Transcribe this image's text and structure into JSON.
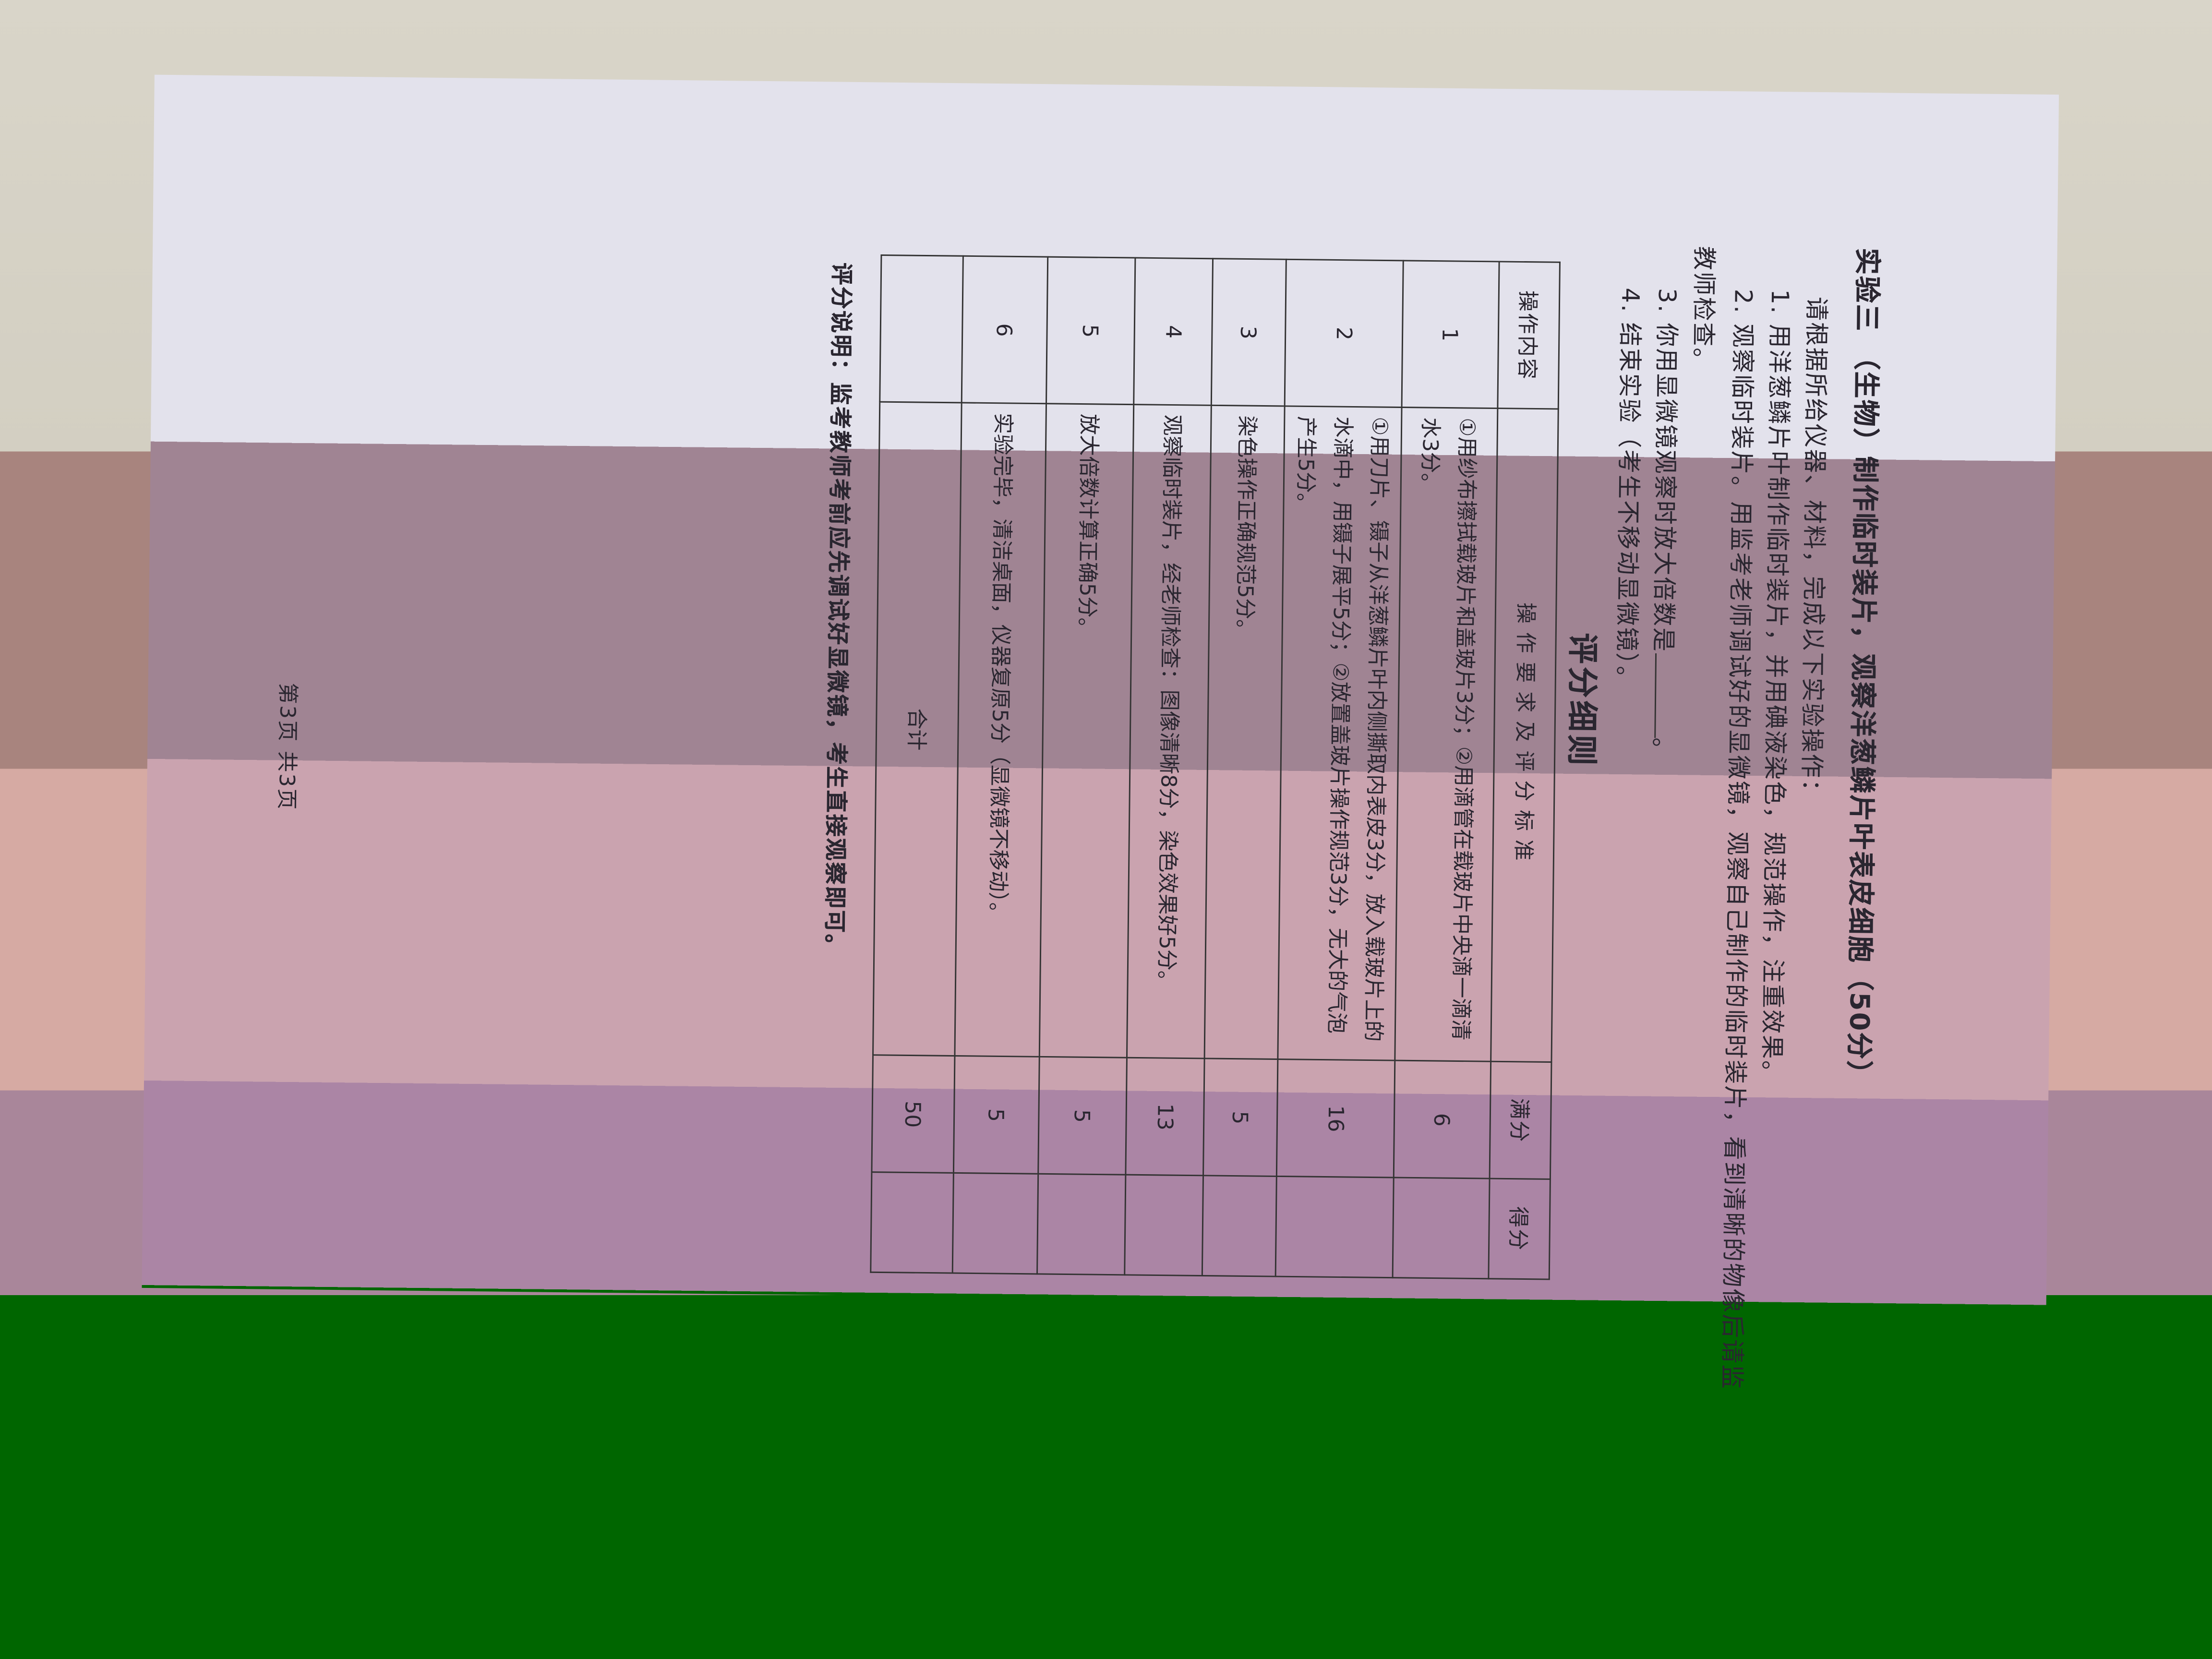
{
  "document": {
    "title": "实验三 （生物）制作临时装片，观察洋葱鳞片叶表皮细胞（50分）",
    "intro": "请根据所给仪器、材料，完成以下实验操作：",
    "steps": [
      "1. 用洋葱鳞片叶制作临时装片，并用碘液染色，规范操作，注重效果。",
      "2. 观察临时装片。用监考老师调试好的显微镜，观察自己制作的临时装片，看到清晰的物像后请监",
      "教师检查。",
      "3. 你用显微镜观察时放大倍数是",
      "。",
      "4. 结束实验（考生不移动显微镜）。"
    ],
    "scoring_heading": "评分细则",
    "table": {
      "headers": [
        "操作内容",
        "操作要求及评分标准",
        "满分",
        "得分"
      ],
      "rows": [
        {
          "no": "1",
          "text": "①用纱布擦拭载玻片和盖玻片3分；②用滴管在载玻片中央滴一滴清水3分。",
          "full": "6"
        },
        {
          "no": "2",
          "text": "①用刀片、镊子从洋葱鳞片叶内侧撕取内表皮3分，放入载玻片上的水滴中，用镊子展平5分；②放置盖玻片操作规范3分，无大的气泡产生5分。",
          "full": "16"
        },
        {
          "no": "3",
          "text": "染色操作正确规范5分。",
          "full": "5"
        },
        {
          "no": "4",
          "text": "观察临时装片，经老师检查：图像清晰8分，染色效果好5分。",
          "full": "13"
        },
        {
          "no": "5",
          "text": "放大倍数计算正确5分。",
          "full": "5"
        },
        {
          "no": "6",
          "text": "实验完毕，清洁桌面，仪器复原5分（显微镜不移动）。",
          "full": "5"
        }
      ],
      "total_label": "合计",
      "total": "50"
    },
    "note": "评分说明：监考教师考前应先调试好显微镜，考生直接观察即可。",
    "page_number": "第3页  共3页"
  },
  "colors": {
    "paper": "#e3e2ec",
    "background": "#d8d3c6",
    "band_mauve": "#b28c9c",
    "band_pink": "#e4b2be",
    "band_purple": "#bf8eb3",
    "green_block": "#006600"
  }
}
